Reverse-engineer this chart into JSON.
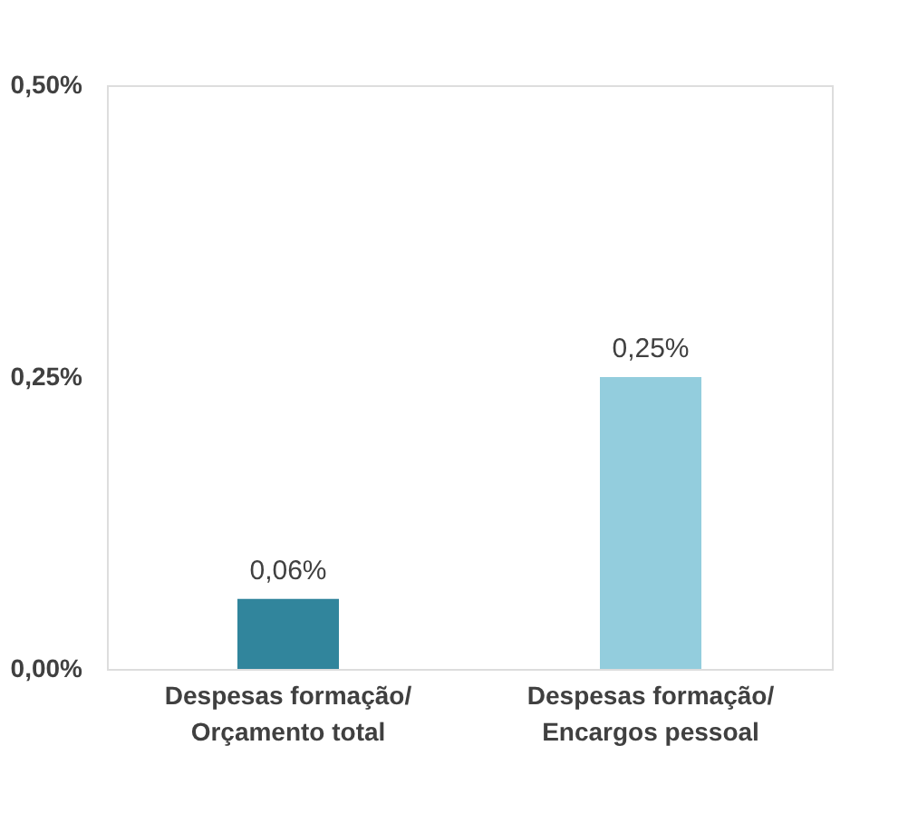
{
  "chart_data": {
    "type": "bar",
    "categories": [
      "Despesas formação/\nOrçamento total",
      "Despesas formação/\nEncargos pessoal"
    ],
    "values": [
      0.06,
      0.25
    ],
    "colors": [
      "#31859c",
      "#93cddd"
    ],
    "value_labels": [
      "0,06%",
      "0,25%"
    ],
    "ylim": [
      0,
      0.5
    ],
    "yticks": [
      {
        "value": 0,
        "label": "0,00%"
      },
      {
        "value": 0.25,
        "label": "0,25%"
      },
      {
        "value": 0.5,
        "label": "0,50%"
      }
    ],
    "grid": false
  }
}
